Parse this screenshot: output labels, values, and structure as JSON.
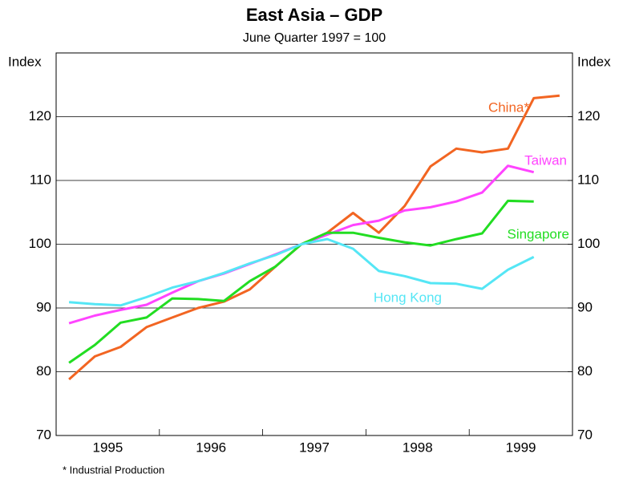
{
  "chart_data": {
    "type": "line",
    "title": "East Asia – GDP",
    "subtitle": "June Quarter 1997 = 100",
    "y_label": "Index",
    "y2_label": "Index",
    "footnote": "* Industrial Production",
    "categories": [
      "1995",
      null,
      null,
      null,
      "1996",
      null,
      null,
      null,
      "1997",
      null,
      null,
      null,
      "1998",
      null,
      null,
      null,
      "1999",
      null,
      null,
      null
    ],
    "ylim": [
      70,
      130
    ],
    "yticks": [
      70,
      80,
      90,
      100,
      110,
      120
    ],
    "y2lim": [
      70,
      130
    ],
    "y2ticks": [
      70,
      80,
      90,
      100,
      110,
      120
    ],
    "grid": true,
    "series": [
      {
        "name": "China*",
        "color": "#f26522",
        "values": [
          78.8,
          82.4,
          83.9,
          87,
          88.5,
          90,
          91,
          92.9,
          96.5,
          100,
          101.8,
          104.9,
          101.8,
          106,
          112.2,
          115,
          114.4,
          115,
          122.9,
          123.3
        ]
      },
      {
        "name": "Taiwan",
        "color": "#ff44ff",
        "values": [
          87.6,
          88.8,
          89.7,
          90.5,
          92.4,
          94.2,
          95.4,
          96.9,
          98.4,
          100,
          101.5,
          103,
          103.7,
          105.3,
          105.8,
          106.7,
          108.1,
          112.3,
          111.3,
          null
        ]
      },
      {
        "name": "Singapore",
        "color": "#22dd22",
        "values": [
          81.4,
          84.2,
          87.7,
          88.5,
          91.5,
          91.4,
          91.1,
          94.2,
          96.5,
          100,
          101.8,
          101.8,
          101,
          100.3,
          99.8,
          100.8,
          101.7,
          106.8,
          106.7,
          null
        ]
      },
      {
        "name": "Hong Kong",
        "color": "#55e6f5",
        "values": [
          90.9,
          90.6,
          90.4,
          91.7,
          93.2,
          94.2,
          95.5,
          97,
          98.3,
          100,
          100.8,
          99.3,
          95.8,
          95,
          93.9,
          93.8,
          93,
          96,
          98,
          null
        ]
      }
    ]
  }
}
